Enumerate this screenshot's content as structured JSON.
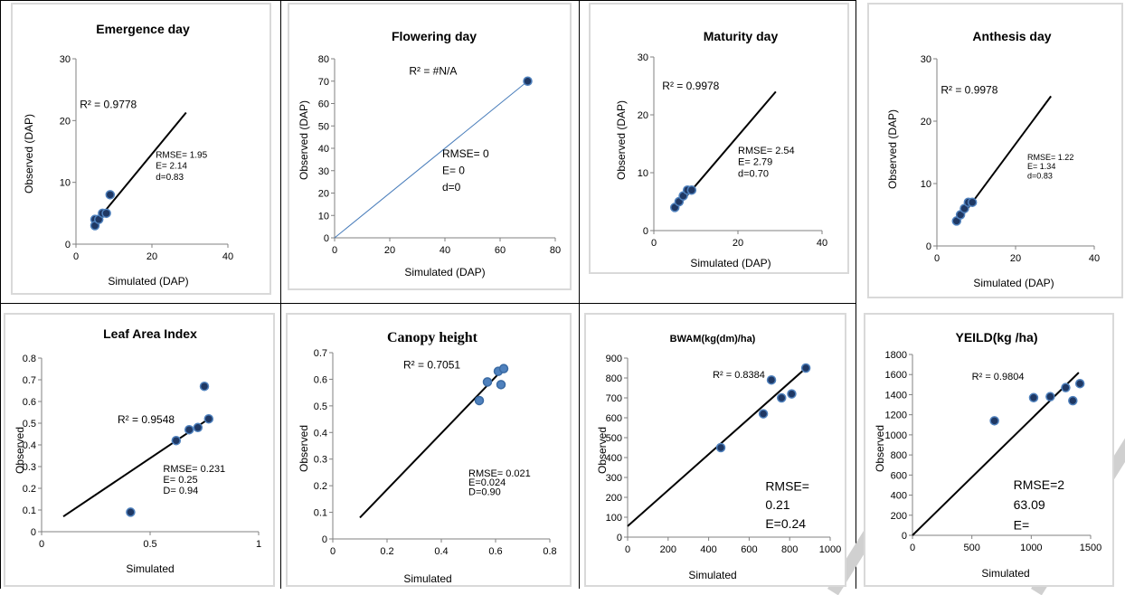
{
  "chart_data": [
    {
      "type": "scatter",
      "title": "Emergence day",
      "xlabel": "Simulated (DAP)",
      "ylabel": "Observed (DAP)",
      "xlim": [
        0,
        40
      ],
      "ylim": [
        0,
        30
      ],
      "xticks": [
        "0",
        "20",
        "40"
      ],
      "yticks": [
        "0",
        "10",
        "20",
        "30"
      ],
      "points": [
        [
          5,
          4
        ],
        [
          5,
          3
        ],
        [
          6,
          4
        ],
        [
          7,
          5
        ],
        [
          8,
          5
        ],
        [
          9,
          8
        ]
      ],
      "trendline": [
        [
          5,
          3.4
        ],
        [
          29,
          21.3
        ]
      ],
      "annotations": [
        {
          "text": "R² = 0.9778",
          "x": 1,
          "y": 22
        },
        {
          "text": "RMSE= 1.95",
          "x": 21,
          "y": 14
        },
        {
          "text": "E= 2.14",
          "x": 21,
          "y": 12.2
        },
        {
          "text": "d=0.83",
          "x": 21,
          "y": 10.4
        }
      ]
    },
    {
      "type": "scatter",
      "title": "Flowering day",
      "xlabel": "Simulated (DAP)",
      "ylabel": "Observed (DAP)",
      "xlim": [
        0,
        80
      ],
      "ylim": [
        0,
        80
      ],
      "xticks": [
        "0",
        "20",
        "40",
        "60",
        "80"
      ],
      "yticks": [
        "0",
        "10",
        "20",
        "30",
        "40",
        "50",
        "60",
        "70",
        "80"
      ],
      "points": [
        [
          70,
          70
        ]
      ],
      "trendline": [
        [
          0,
          0
        ],
        [
          70,
          70
        ]
      ],
      "annotations": [
        {
          "text": "R² = #N/A",
          "x": 27,
          "y": 73
        },
        {
          "text": "RMSE= 0",
          "x": 39,
          "y": 36
        },
        {
          "text": "E= 0",
          "x": 39,
          "y": 28.5
        },
        {
          "text": "d=0",
          "x": 39,
          "y": 21
        }
      ]
    },
    {
      "type": "scatter",
      "title": "Maturity  day",
      "xlabel": "Simulated (DAP)",
      "ylabel": "Observed (DAP)",
      "xlim": [
        0,
        40
      ],
      "ylim": [
        0,
        30
      ],
      "xticks": [
        "0",
        "20",
        "40"
      ],
      "yticks": [
        "0",
        "10",
        "20",
        "30"
      ],
      "points": [
        [
          5,
          4
        ],
        [
          6,
          5
        ],
        [
          7,
          6
        ],
        [
          8,
          7
        ],
        [
          9,
          7
        ]
      ],
      "trendline": [
        [
          5,
          3.6
        ],
        [
          29,
          24
        ]
      ],
      "annotations": [
        {
          "text": "R² = 0.9978",
          "x": 2,
          "y": 24.4
        },
        {
          "text": "RMSE= 2.54",
          "x": 20,
          "y": 13.3
        },
        {
          "text": "E= 2.79",
          "x": 20,
          "y": 11.3
        },
        {
          "text": "d=0.70",
          "x": 20,
          "y": 9.3
        }
      ]
    },
    {
      "type": "scatter",
      "title": "Anthesis  day",
      "xlabel": "Simulated (DAP)",
      "ylabel": "Observed (DAP)",
      "xlim": [
        0,
        40
      ],
      "ylim": [
        0,
        30
      ],
      "xticks": [
        "0",
        "20",
        "40"
      ],
      "yticks": [
        "0",
        "10",
        "20",
        "30"
      ],
      "points": [
        [
          5,
          4
        ],
        [
          6,
          5
        ],
        [
          7,
          6
        ],
        [
          8,
          7
        ],
        [
          9,
          7
        ]
      ],
      "trendline": [
        [
          5,
          3.6
        ],
        [
          29,
          24
        ]
      ],
      "annotations": [
        {
          "text": "R² = 0.9978",
          "x": 1,
          "y": 24.4
        },
        {
          "text": "RMSE= 1.22",
          "x": 23,
          "y": 13.8
        },
        {
          "text": "E= 1.34",
          "x": 23,
          "y": 12.3
        },
        {
          "text": "d=0.83",
          "x": 23,
          "y": 10.8
        }
      ]
    },
    {
      "type": "scatter",
      "title": "Leaf Area Index",
      "xlabel": "Simulated",
      "ylabel": "Observed",
      "xlim": [
        0,
        1
      ],
      "ylim": [
        0,
        0.8
      ],
      "xticks": [
        "0",
        "0.5",
        "1"
      ],
      "yticks": [
        "0",
        "0.1",
        "0.2",
        "0.3",
        "0.4",
        "0.5",
        "0.6",
        "0.7",
        "0.8"
      ],
      "points": [
        [
          0.41,
          0.09
        ],
        [
          0.62,
          0.42
        ],
        [
          0.68,
          0.47
        ],
        [
          0.72,
          0.48
        ],
        [
          0.75,
          0.67
        ],
        [
          0.77,
          0.52
        ]
      ],
      "trendline": [
        [
          0.1,
          0.07
        ],
        [
          0.77,
          0.52
        ]
      ],
      "annotations": [
        {
          "text": "R² = 0.9548",
          "x": 0.35,
          "y": 0.5
        },
        {
          "text": "RMSE= 0.231",
          "x": 0.56,
          "y": 0.275
        },
        {
          "text": "E= 0.25",
          "x": 0.56,
          "y": 0.225
        },
        {
          "text": "D= 0.94",
          "x": 0.56,
          "y": 0.175
        }
      ]
    },
    {
      "type": "scatter",
      "title": "Canopy height",
      "xlabel": "Simulated",
      "ylabel": "Observed",
      "xlim": [
        0,
        0.8
      ],
      "ylim": [
        0,
        0.7
      ],
      "xticks": [
        "0",
        "0.2",
        "0.4",
        "0.6",
        "0.8"
      ],
      "yticks": [
        "0",
        "0.1",
        "0.2",
        "0.3",
        "0.4",
        "0.5",
        "0.6",
        "0.7"
      ],
      "points": [
        [
          0.54,
          0.52
        ],
        [
          0.57,
          0.59
        ],
        [
          0.61,
          0.63
        ],
        [
          0.62,
          0.58
        ],
        [
          0.63,
          0.64
        ]
      ],
      "trendline": [
        [
          0.1,
          0.08
        ],
        [
          0.62,
          0.63
        ]
      ],
      "annotations": [
        {
          "text": "R² = 0.7051",
          "x": 0.26,
          "y": 0.64
        },
        {
          "text": "RMSE= 0.021",
          "x": 0.5,
          "y": 0.235
        },
        {
          "text": "E=0.024",
          "x": 0.5,
          "y": 0.2
        },
        {
          "text": "D=0.90",
          "x": 0.5,
          "y": 0.165
        }
      ]
    },
    {
      "type": "scatter",
      "title": "BWAM(kg(dm)/ha)",
      "xlabel": "Simulated",
      "ylabel": "Observed",
      "xlim": [
        0,
        1000
      ],
      "ylim": [
        0,
        900
      ],
      "xticks": [
        "0",
        "200",
        "400",
        "600",
        "800",
        "1000"
      ],
      "yticks": [
        "0",
        "100",
        "200",
        "300",
        "400",
        "500",
        "600",
        "700",
        "800",
        "900"
      ],
      "points": [
        [
          460,
          450
        ],
        [
          670,
          620
        ],
        [
          710,
          790
        ],
        [
          760,
          700
        ],
        [
          810,
          720
        ],
        [
          880,
          850
        ]
      ],
      "trendline": [
        [
          0,
          55
        ],
        [
          880,
          850
        ]
      ],
      "annotations": [
        {
          "text": "R² = 0.8384",
          "x": 420,
          "y": 800
        },
        {
          "text": "RMSE=",
          "x": 680,
          "y": 235
        },
        {
          "text": "0.21",
          "x": 680,
          "y": 140
        },
        {
          "text": "E=0.24",
          "x": 680,
          "y": 45
        }
      ]
    },
    {
      "type": "scatter",
      "title": "YEILD(kg /ha)",
      "xlabel": "Simulated",
      "ylabel": "Observed",
      "xlim": [
        0,
        1500
      ],
      "ylim": [
        0,
        1800
      ],
      "xticks": [
        "0",
        "500",
        "1000",
        "1500"
      ],
      "yticks": [
        "0",
        "200",
        "400",
        "600",
        "800",
        "1000",
        "1200",
        "1400",
        "1600",
        "1800"
      ],
      "points": [
        [
          690,
          1140
        ],
        [
          1020,
          1370
        ],
        [
          1160,
          1380
        ],
        [
          1290,
          1470
        ],
        [
          1350,
          1340
        ],
        [
          1410,
          1510
        ]
      ],
      "trendline": [
        [
          0,
          0
        ],
        [
          1400,
          1620
        ]
      ],
      "annotations": [
        {
          "text": "R² = 0.9804",
          "x": 500,
          "y": 1550
        },
        {
          "text": "RMSE=2",
          "x": 850,
          "y": 460
        },
        {
          "text": "63.09",
          "x": 850,
          "y": 260
        },
        {
          "text": "E=",
          "x": 850,
          "y": 60
        }
      ]
    }
  ]
}
